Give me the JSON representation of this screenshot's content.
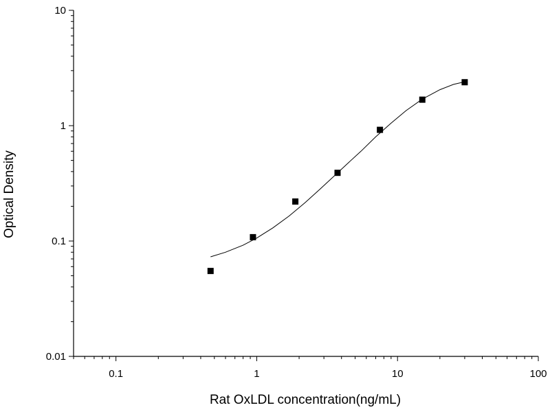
{
  "chart_data": {
    "type": "scatter",
    "title": "",
    "xlabel": "Rat OxLDL concentration(ng/mL)",
    "ylabel": "Optical Density",
    "xscale": "log",
    "yscale": "log",
    "xlim": [
      0.05,
      100
    ],
    "ylim": [
      0.01,
      10
    ],
    "x_ticks": [
      {
        "value": 0.1,
        "label": "0.1"
      },
      {
        "value": 1,
        "label": "1"
      },
      {
        "value": 10,
        "label": "10"
      },
      {
        "value": 100,
        "label": "100"
      }
    ],
    "y_ticks": [
      {
        "value": 0.01,
        "label": "0.01"
      },
      {
        "value": 0.1,
        "label": "0.1"
      },
      {
        "value": 1,
        "label": "1"
      },
      {
        "value": 10,
        "label": "10"
      }
    ],
    "grid": false,
    "legend": "none",
    "series": [
      {
        "marker": "square",
        "color": "#000000",
        "x": [
          0.47,
          0.94,
          1.88,
          3.75,
          7.5,
          15,
          30
        ],
        "y": [
          0.055,
          0.108,
          0.22,
          0.39,
          0.92,
          1.68,
          2.38
        ]
      }
    ],
    "fit_curve": {
      "color": "#000000",
      "x": [
        0.47,
        0.6,
        0.8,
        1.0,
        1.3,
        1.7,
        2.2,
        2.8,
        3.5,
        4.5,
        5.5,
        7.0,
        9.0,
        11.5,
        15,
        20,
        25,
        30
      ],
      "y": [
        0.073,
        0.08,
        0.092,
        0.106,
        0.13,
        0.165,
        0.215,
        0.28,
        0.36,
        0.48,
        0.6,
        0.8,
        1.05,
        1.35,
        1.7,
        2.05,
        2.28,
        2.4
      ]
    }
  }
}
